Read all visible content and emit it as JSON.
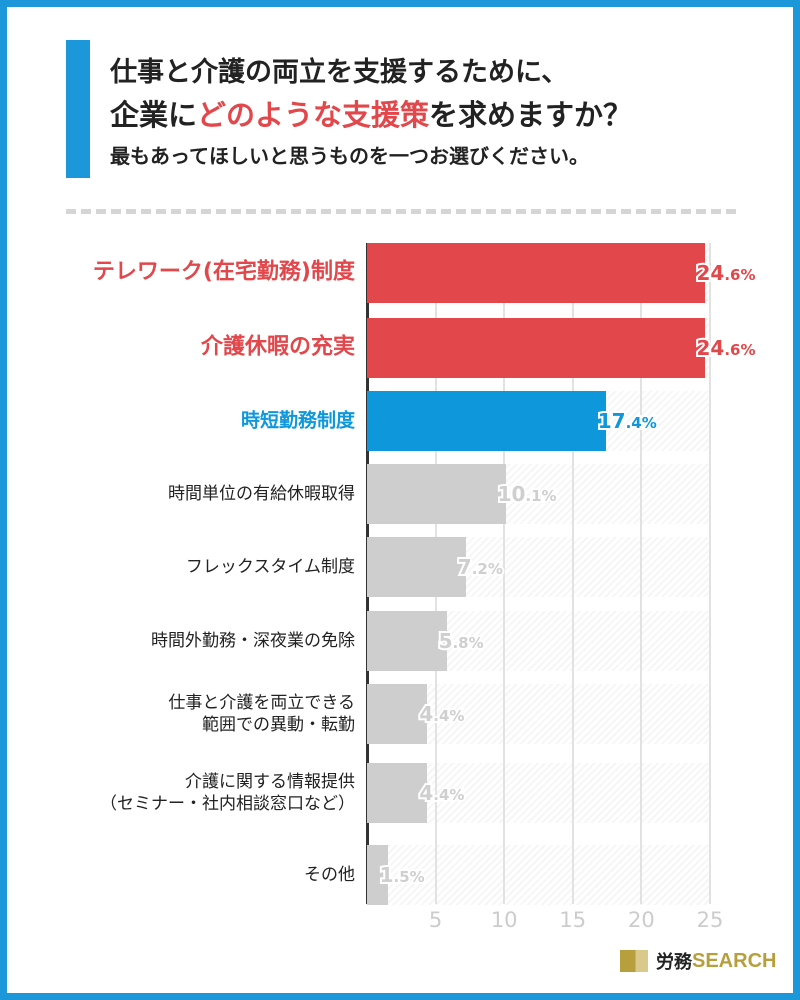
{
  "title": {
    "line1": "仕事と介護の両立を支援するために、",
    "line2_pre": "企業に",
    "line2_hl": "どのような支援策",
    "line2_post": "を求めますか？",
    "line3": "最もあってほしいと思うものを一つお選びください。"
  },
  "colors": {
    "red": "#e2474b",
    "blue": "#0f97dc",
    "gray": "#cecece",
    "border": "#1b97da"
  },
  "logo": {
    "jp": "労務",
    "en": "SEARCH"
  },
  "chart_data": {
    "type": "bar",
    "orientation": "horizontal",
    "categories": [
      "テレワーク(在宅勤務)制度",
      "介護休暇の充実",
      "時短勤務制度",
      "時間単位の有給休暇取得",
      "フレックスタイム制度",
      "時間外勤務・深夜業の免除",
      "仕事と介護を両立できる\n範囲での異動・転勤",
      "介護に関する情報提供\n（セミナー・社内相談窓口など）",
      "その他"
    ],
    "values": [
      24.6,
      24.6,
      17.4,
      10.1,
      7.2,
      5.8,
      4.4,
      4.4,
      1.5
    ],
    "highlight": [
      "red",
      "red",
      "blue",
      "gray",
      "gray",
      "gray",
      "gray",
      "gray",
      "gray"
    ],
    "unit": "%",
    "xlim": [
      0,
      25
    ],
    "xticks": [
      5,
      10,
      15,
      20,
      25
    ],
    "grid": true
  }
}
